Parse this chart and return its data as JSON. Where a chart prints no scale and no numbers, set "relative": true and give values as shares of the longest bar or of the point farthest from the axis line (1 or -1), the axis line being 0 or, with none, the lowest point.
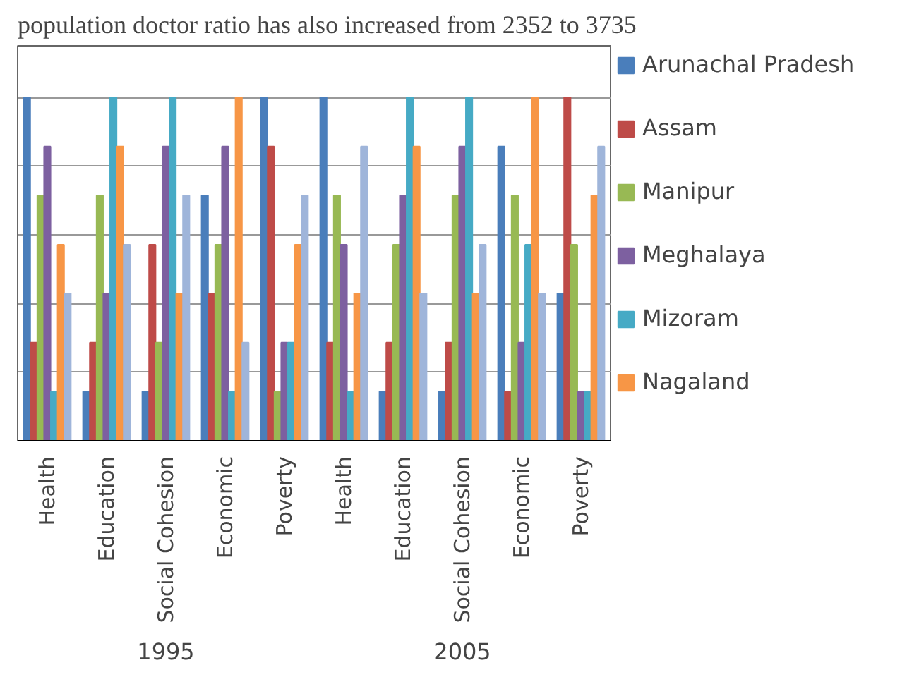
{
  "chart_data": {
    "type": "bar",
    "relative": true,
    "title": "population  doctor ratio has also increased from 2352 to 3735",
    "categories": [
      "Health",
      "Education",
      "Social Cohesion",
      "Economic",
      "Poverty",
      "Health",
      "Education",
      "Social Cohesion",
      "Economic",
      "Poverty"
    ],
    "annotations": [
      "1995",
      "2005"
    ],
    "series": [
      {
        "name": "Arunachal Pradesh",
        "color": "#4a7ebb",
        "values": [
          1,
          0.143,
          0.143,
          0.714,
          1,
          1,
          0.143,
          0.143,
          0.857,
          0.429
        ]
      },
      {
        "name": "Assam",
        "color": "#be4b48",
        "values": [
          0.286,
          0.286,
          0.571,
          0.429,
          0.857,
          0.286,
          0.286,
          0.286,
          0.143,
          1
        ]
      },
      {
        "name": "Manipur",
        "color": "#98b954",
        "values": [
          0.714,
          0.714,
          0.286,
          0.571,
          0.143,
          0.714,
          0.571,
          0.714,
          0.714,
          0.571
        ]
      },
      {
        "name": "Meghalaya",
        "color": "#7d60a0",
        "values": [
          0.857,
          0.429,
          0.857,
          0.857,
          0.286,
          0.571,
          0.714,
          0.857,
          0.286,
          0.143
        ]
      },
      {
        "name": "Mizoram",
        "color": "#46aac5",
        "values": [
          0.143,
          1,
          1,
          0.143,
          0.286,
          0.143,
          1,
          1,
          0.571,
          0.143
        ]
      },
      {
        "name": "Nagaland",
        "color": "#f79646",
        "values": [
          0.571,
          0.857,
          0.429,
          1,
          0.571,
          0.429,
          0.857,
          0.429,
          1,
          0.714
        ]
      },
      {
        "color": "#9fb5da",
        "values": [
          0.429,
          0.571,
          0.714,
          0.286,
          0.714,
          0.857,
          0.429,
          0.571,
          0.429,
          0.857
        ]
      }
    ],
    "grid": "y",
    "legend": "right"
  }
}
